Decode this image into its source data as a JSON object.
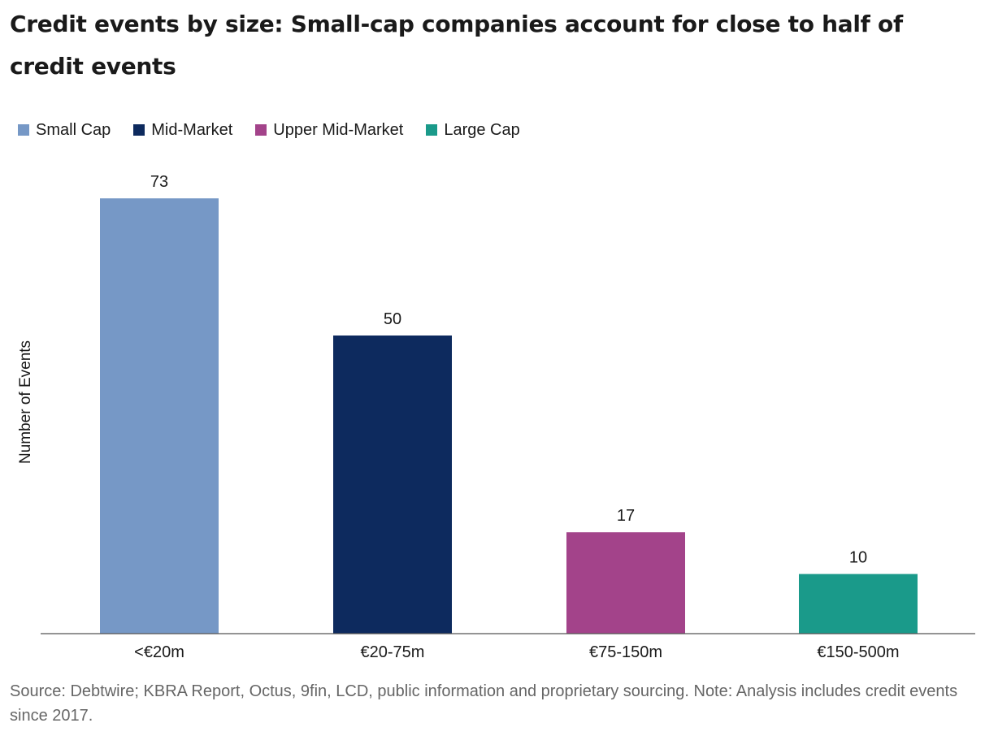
{
  "title": "Credit events by size: Small-cap companies account for close to half of credit events",
  "source": "Source: Debtwire; KBRA Report, Octus, 9fin, LCD, public information and proprietary sourcing. Note: Analysis includes credit events since 2017.",
  "legend": [
    {
      "label": "Small Cap",
      "color": "#7698c6"
    },
    {
      "label": "Mid-Market",
      "color": "#0d2a5e"
    },
    {
      "label": "Upper Mid-Market",
      "color": "#a3438a"
    },
    {
      "label": "Large Cap",
      "color": "#1a9a8a"
    }
  ],
  "chart_data": {
    "type": "bar",
    "title": "Credit events by size: Small-cap companies account for close to half of credit events",
    "xlabel": "",
    "ylabel": "Number of Events",
    "categories": [
      "<€20m",
      "€20-75m",
      "€75-150m",
      "€150-500m"
    ],
    "values": [
      73,
      50,
      17,
      10
    ],
    "value_labels": [
      "73",
      "50",
      "17",
      "10"
    ],
    "colors": [
      "#7698c6",
      "#0d2a5e",
      "#a3438a",
      "#1a9a8a"
    ],
    "series_names": [
      "Small Cap",
      "Mid-Market",
      "Upper Mid-Market",
      "Large Cap"
    ],
    "ylim": [
      0,
      80
    ],
    "grid": false,
    "legend_position": "top-left"
  }
}
